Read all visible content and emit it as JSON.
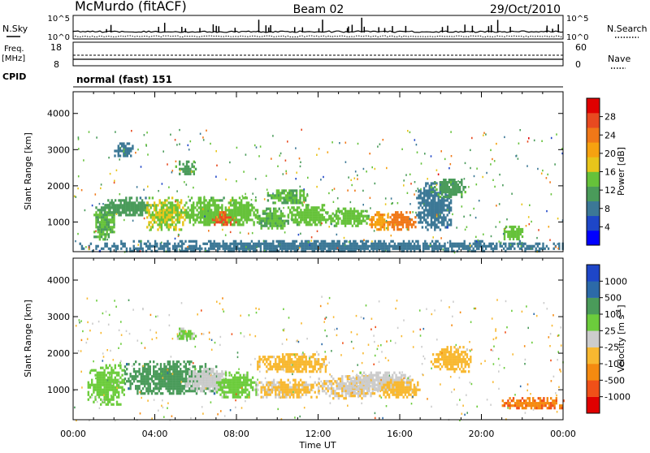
{
  "header": {
    "station": "McMurdo (fitACF)",
    "beam": "Beam 02",
    "date": "29/Oct/2010"
  },
  "noise_panel": {
    "left_label": "N.Sky",
    "right_label": "N.Search",
    "ticks_left": [
      "10^5",
      "10^0"
    ],
    "ticks_right": [
      "10^5",
      "10^0"
    ]
  },
  "freq_panel": {
    "left_label_line1": "Freq.",
    "left_label_line2": "[MHz]",
    "right_label": "Nave",
    "ticks_left": [
      "18",
      "8"
    ],
    "ticks_right": [
      "60",
      "0"
    ]
  },
  "cpid": {
    "label": "CPID",
    "value": "normal (fast) 151"
  },
  "chart_data": [
    {
      "type": "heatmap",
      "quantity": "power",
      "ylabel": "Slant Range [km]",
      "xlabel": "Time UT",
      "x_ticks": [
        "00:00",
        "04:00",
        "08:00",
        "12:00",
        "16:00",
        "20:00",
        "00:00"
      ],
      "y_ticks": [
        1000,
        2000,
        3000,
        4000
      ],
      "xlim_hours": [
        0,
        24
      ],
      "ylim_km": [
        180,
        4600
      ],
      "colorbar": {
        "label": "Power [dB]",
        "ticks": [
          "4",
          "8",
          "12",
          "16",
          "20",
          "24",
          "28"
        ],
        "colors": [
          "#0000ff",
          "#1e46c8",
          "#3c7896",
          "#4a9b5a",
          "#66c23a",
          "#e8c51a",
          "#f6a210",
          "#f07818",
          "#e84a20",
          "#e00000"
        ],
        "range": [
          0,
          32
        ]
      },
      "regions": [
        {
          "t0": 1.0,
          "t1": 2.0,
          "r0": 500,
          "r1": 1500,
          "v": 13
        },
        {
          "t0": 1.5,
          "t1": 4.0,
          "r0": 1200,
          "r1": 1700,
          "v": 11
        },
        {
          "t0": 3.5,
          "t1": 5.5,
          "r0": 800,
          "r1": 1700,
          "v": 16
        },
        {
          "t0": 5.5,
          "t1": 7.5,
          "r0": 900,
          "r1": 1700,
          "v": 14
        },
        {
          "t0": 6.8,
          "t1": 8.0,
          "r0": 900,
          "r1": 1300,
          "v": 26
        },
        {
          "t0": 7.5,
          "t1": 9.0,
          "r0": 900,
          "r1": 1700,
          "v": 15
        },
        {
          "t0": 9.0,
          "t1": 10.5,
          "r0": 800,
          "r1": 1400,
          "v": 13
        },
        {
          "t0": 9.5,
          "t1": 11.5,
          "r0": 1500,
          "r1": 1900,
          "v": 13
        },
        {
          "t0": 10.5,
          "t1": 12.5,
          "r0": 900,
          "r1": 1500,
          "v": 14
        },
        {
          "t0": 12.5,
          "t1": 14.5,
          "r0": 900,
          "r1": 1400,
          "v": 14
        },
        {
          "t0": 14.5,
          "t1": 15.5,
          "r0": 800,
          "r1": 1300,
          "v": 22
        },
        {
          "t0": 15.5,
          "t1": 16.8,
          "r0": 800,
          "r1": 1300,
          "v": 24
        },
        {
          "t0": 16.8,
          "t1": 18.5,
          "r0": 800,
          "r1": 2100,
          "v": 8
        },
        {
          "t0": 17.5,
          "t1": 19.2,
          "r0": 1700,
          "r1": 2200,
          "v": 12
        },
        {
          "t0": 21.0,
          "t1": 22.0,
          "r0": 500,
          "r1": 900,
          "v": 14
        },
        {
          "t0": 2.0,
          "t1": 3.0,
          "r0": 2800,
          "r1": 3200,
          "v": 8
        },
        {
          "t0": 5.0,
          "t1": 6.0,
          "r0": 2300,
          "r1": 2700,
          "v": 12
        },
        {
          "t0": 0.3,
          "t1": 24.0,
          "r0": 200,
          "r1": 500,
          "v": 8
        }
      ]
    },
    {
      "type": "heatmap",
      "quantity": "velocity",
      "ylabel": "Slant Range [km]",
      "xlabel": "Time UT",
      "x_ticks": [
        "00:00",
        "04:00",
        "08:00",
        "12:00",
        "16:00",
        "20:00",
        "00:00"
      ],
      "y_ticks": [
        1000,
        2000,
        3000,
        4000
      ],
      "xlim_hours": [
        0,
        24
      ],
      "ylim_km": [
        180,
        4600
      ],
      "colorbar": {
        "label_main": "Velocity [m s",
        "label_exp": "-1",
        "label_close": "]",
        "ticks": [
          "-1000",
          "-500",
          "-100",
          "-25",
          "25",
          "100",
          "500",
          "1000"
        ],
        "colors": [
          "#e00000",
          "#f05018",
          "#f58a10",
          "#f8b830",
          "#cccccc",
          "#6ccc3c",
          "#4a9b5a",
          "#2c6aa8",
          "#1e46c8"
        ],
        "range": [
          -1500,
          1500
        ]
      },
      "regions": [
        {
          "t0": 0.7,
          "t1": 2.5,
          "r0": 600,
          "r1": 1700,
          "v": 300
        },
        {
          "t0": 2.5,
          "t1": 7.0,
          "r0": 900,
          "r1": 1800,
          "v": 700
        },
        {
          "t0": 5.5,
          "t1": 7.5,
          "r0": 1000,
          "r1": 1600,
          "v": 30
        },
        {
          "t0": 7.0,
          "t1": 9.0,
          "r0": 800,
          "r1": 1500,
          "v": 250
        },
        {
          "t0": 9.0,
          "t1": 12.0,
          "r0": 800,
          "r1": 1300,
          "v": -200
        },
        {
          "t0": 9.0,
          "t1": 12.5,
          "r0": 1500,
          "r1": 2000,
          "v": -250
        },
        {
          "t0": 12.0,
          "t1": 15.0,
          "r0": 800,
          "r1": 1400,
          "v": -150
        },
        {
          "t0": 13.5,
          "t1": 16.5,
          "r0": 1000,
          "r1": 1500,
          "v": 30
        },
        {
          "t0": 15.0,
          "t1": 17.0,
          "r0": 800,
          "r1": 1300,
          "v": -300
        },
        {
          "t0": 17.5,
          "t1": 19.5,
          "r0": 1500,
          "r1": 2200,
          "v": -300
        },
        {
          "t0": 21.0,
          "t1": 24.0,
          "r0": 500,
          "r1": 800,
          "v": -800
        },
        {
          "t0": 5.0,
          "t1": 6.0,
          "r0": 2400,
          "r1": 2700,
          "v": 200
        }
      ]
    }
  ]
}
